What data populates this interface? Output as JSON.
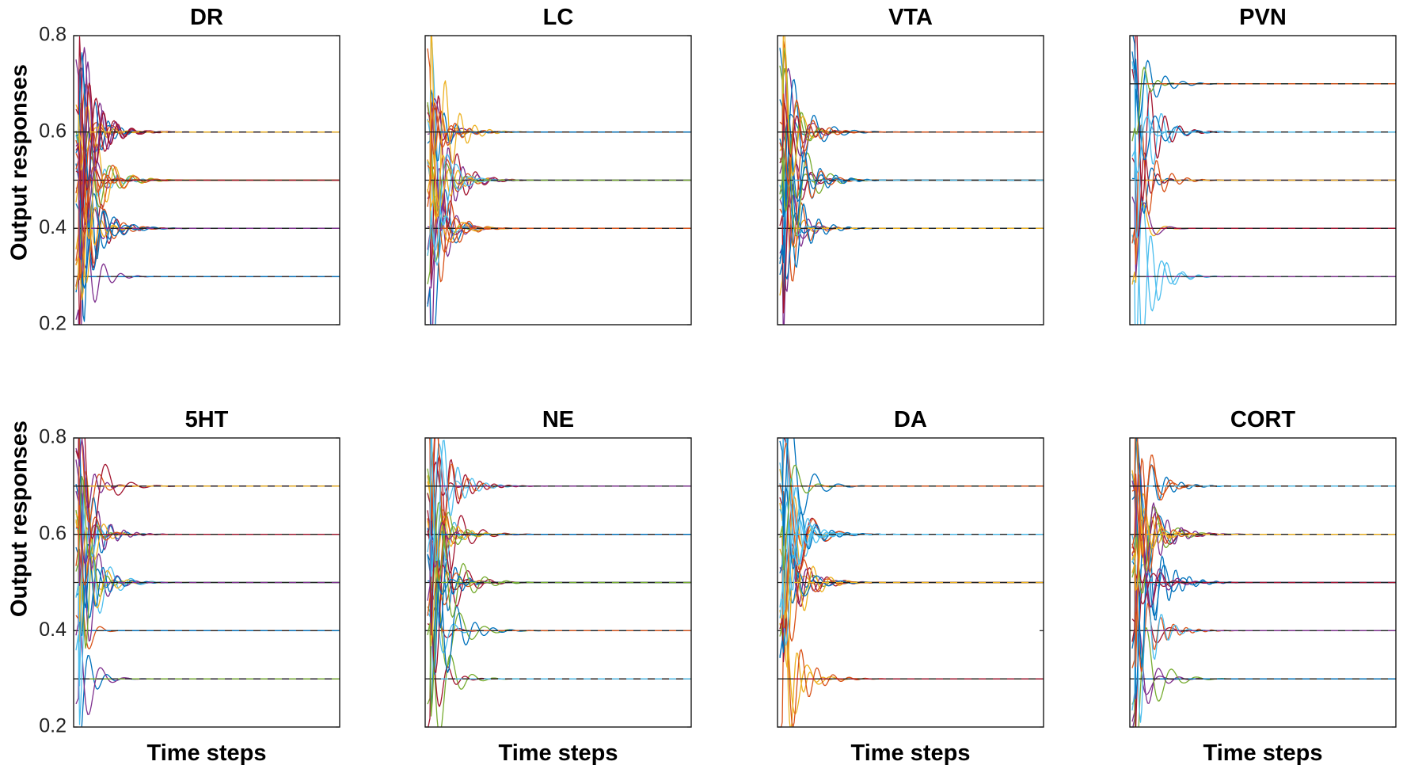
{
  "figure": {
    "ylabel": "Output responses",
    "xlabel": "Time steps"
  },
  "colors": {
    "palette": [
      "#0072BD",
      "#D95319",
      "#EDB120",
      "#7E2F8E",
      "#77AC30",
      "#4DBEEE",
      "#A2142F"
    ],
    "reference": "#222222"
  },
  "chart_data": [
    {
      "type": "line",
      "title": "DR",
      "ylim": [
        0.2,
        0.8
      ],
      "yticks": [
        "0.2",
        "0.4",
        "0.6",
        "0.8"
      ],
      "setpoints": [
        0.3,
        0.4,
        0.5,
        0.6
      ],
      "traces": [
        1,
        8,
        8,
        10
      ],
      "xlabel": "",
      "show_ytick_labels": true
    },
    {
      "type": "line",
      "title": "LC",
      "ylim": [
        0.2,
        0.8
      ],
      "yticks": [
        "0.2",
        "0.4",
        "0.6",
        "0.8"
      ],
      "setpoints": [
        0.4,
        0.5,
        0.6
      ],
      "traces": [
        9,
        9,
        7
      ],
      "xlabel": "",
      "show_ytick_labels": false
    },
    {
      "type": "line",
      "title": "VTA",
      "ylim": [
        0.2,
        0.8
      ],
      "yticks": [
        "0.2",
        "0.4",
        "0.6",
        "0.8"
      ],
      "setpoints": [
        0.4,
        0.5,
        0.6
      ],
      "traces": [
        7,
        7,
        8
      ],
      "xlabel": "",
      "show_ytick_labels": false
    },
    {
      "type": "line",
      "title": "PVN",
      "ylim": [
        0.2,
        0.8
      ],
      "yticks": [
        "0.2",
        "0.4",
        "0.6",
        "0.8"
      ],
      "setpoints": [
        0.3,
        0.4,
        0.5,
        0.6,
        0.7
      ],
      "traces": [
        2,
        2,
        3,
        4,
        2
      ],
      "xlabel": "",
      "show_ytick_labels": false
    },
    {
      "type": "line",
      "title": "5HT",
      "ylim": [
        0.2,
        0.8
      ],
      "yticks": [
        "0.2",
        "0.4",
        "0.6",
        "0.8"
      ],
      "setpoints": [
        0.3,
        0.4,
        0.5,
        0.6,
        0.7
      ],
      "traces": [
        2,
        1,
        7,
        8,
        3
      ],
      "xlabel": "Time steps",
      "show_ytick_labels": true
    },
    {
      "type": "line",
      "title": "NE",
      "ylim": [
        0.2,
        0.8
      ],
      "yticks": [
        "0.2",
        "0.4",
        "0.6",
        "0.8"
      ],
      "setpoints": [
        0.3,
        0.4,
        0.5,
        0.6,
        0.7
      ],
      "traces": [
        2,
        4,
        8,
        8,
        5
      ],
      "xlabel": "Time steps",
      "show_ytick_labels": false
    },
    {
      "type": "line",
      "title": "DA",
      "ylim": [
        0.2,
        0.8
      ],
      "yticks": [
        "0.2",
        "0.4",
        "0.6",
        "0.8"
      ],
      "setpoints": [
        0.3,
        0.5,
        0.6,
        0.7
      ],
      "traces": [
        3,
        8,
        10,
        2
      ],
      "xlabel": "Time steps",
      "show_ytick_labels": false
    },
    {
      "type": "line",
      "title": "CORT",
      "ylim": [
        0.2,
        0.8
      ],
      "yticks": [
        "0.2",
        "0.4",
        "0.6",
        "0.8"
      ],
      "setpoints": [
        0.3,
        0.4,
        0.5,
        0.6,
        0.7
      ],
      "traces": [
        3,
        3,
        6,
        10,
        3
      ],
      "xlabel": "Time steps",
      "show_ytick_labels": false
    }
  ]
}
